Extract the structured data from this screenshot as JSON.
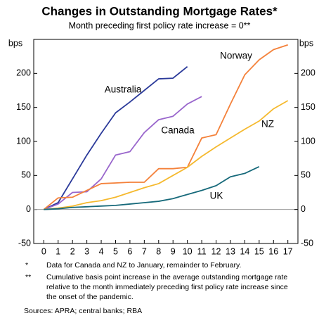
{
  "chart_data": {
    "type": "line",
    "title": "Changes in Outstanding Mortgage Rates*",
    "subtitle": "Month preceding first policy rate increase = 0**",
    "ylabel": "bps",
    "y2label": "bps",
    "x": [
      0,
      1,
      2,
      3,
      4,
      5,
      6,
      7,
      8,
      9,
      10,
      11,
      12,
      13,
      14,
      15,
      16,
      17
    ],
    "xlim": [
      -0.7,
      17.7
    ],
    "xticks": [
      0,
      1,
      2,
      3,
      4,
      5,
      6,
      7,
      8,
      9,
      10,
      11,
      12,
      13,
      14,
      15,
      16,
      17
    ],
    "ylim": [
      -50,
      250
    ],
    "yticks": [
      -50,
      0,
      50,
      100,
      150,
      200
    ],
    "y2lim": [
      -50,
      250
    ],
    "y2ticks": [
      -50,
      0,
      50,
      100,
      150,
      200
    ],
    "grid": false,
    "series": [
      {
        "name": "Australia",
        "color": "#2b3a9a",
        "values": [
          0,
          10,
          45,
          80,
          112,
          142,
          158,
          175,
          192,
          193,
          210,
          null,
          null,
          null,
          null,
          null,
          null,
          null
        ]
      },
      {
        "name": "Canada",
        "color": "#9966cc",
        "values": [
          0,
          8,
          25,
          26,
          45,
          80,
          85,
          113,
          132,
          137,
          155,
          166,
          null,
          null,
          null,
          null,
          null,
          null
        ]
      },
      {
        "name": "Norway",
        "color": "#f4813a",
        "values": [
          0,
          17,
          18,
          28,
          38,
          39,
          40,
          40,
          60,
          60,
          62,
          105,
          110,
          155,
          198,
          220,
          235,
          242
        ]
      },
      {
        "name": "NZ",
        "color": "#f5b92e",
        "values": [
          0,
          2,
          5,
          10,
          13,
          18,
          25,
          32,
          38,
          50,
          62,
          78,
          92,
          105,
          118,
          130,
          148,
          160
        ]
      },
      {
        "name": "UK",
        "color": "#16697a",
        "values": [
          0,
          1,
          3,
          4,
          5,
          6,
          8,
          10,
          12,
          16,
          22,
          28,
          35,
          48,
          53,
          63,
          null,
          null
        ]
      }
    ],
    "notes": [
      {
        "mark": "*",
        "text": "Data for Canada and NZ to January, remainder to February."
      },
      {
        "mark": "**",
        "text": "Cumulative basis point increase in the average outstanding mortgage rate relative to the month immediately preceding first policy rate increase since the onset of the pandemic."
      }
    ],
    "source": "Sources: APRA; central banks; RBA"
  }
}
